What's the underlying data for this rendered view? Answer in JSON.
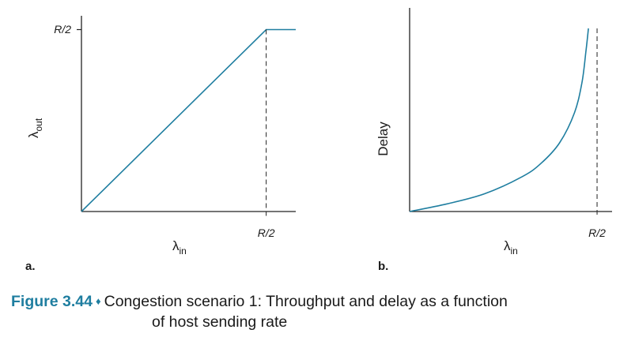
{
  "chart_data": [
    {
      "type": "line",
      "panel_label": "a.",
      "ylabel": "λ",
      "ylabel_sub": "out",
      "xlabel": "λ",
      "xlabel_sub": "in",
      "x_ticks": [
        "R/2"
      ],
      "y_ticks": [
        "R/2"
      ],
      "xlim": [
        0,
        0.58
      ],
      "ylim": [
        0,
        0.5
      ],
      "series": [
        {
          "x": [
            0,
            0.5,
            0.58
          ],
          "y": [
            0,
            0.5,
            0.5
          ]
        }
      ],
      "dashed_vertical_at": 0.5,
      "color": "#1f7ea0"
    },
    {
      "type": "line",
      "panel_label": "b.",
      "ylabel": "Delay",
      "xlabel": "λ",
      "xlabel_sub": "in",
      "x_ticks": [
        "R/2"
      ],
      "xlim": [
        0,
        0.54
      ],
      "ylim": [
        0,
        1
      ],
      "series": [
        {
          "x": [
            0,
            0.1,
            0.2,
            0.3,
            0.35,
            0.4,
            0.44,
            0.46,
            0.47,
            0.477
          ],
          "y": [
            0,
            0.042,
            0.097,
            0.19,
            0.262,
            0.375,
            0.541,
            0.708,
            0.87,
            1.0
          ]
        }
      ],
      "dashed_vertical_at": 0.5,
      "color": "#1f7ea0"
    }
  ],
  "caption": {
    "figure_number": "Figure 3.44",
    "separator": "♦",
    "line1": "Congestion scenario 1: Throughput and delay as a function",
    "line2": "of host sending rate"
  }
}
